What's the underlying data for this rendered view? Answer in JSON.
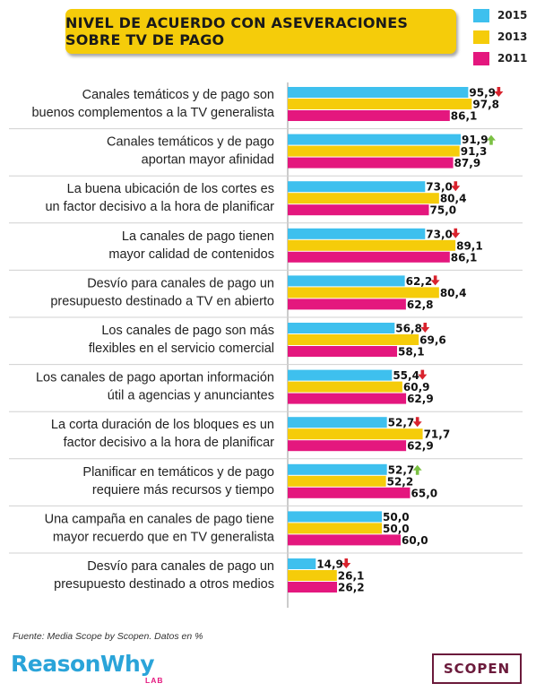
{
  "header": {
    "title": "NIVEL DE ACUERDO CON ASEVERACIONES SOBRE TV DE PAGO"
  },
  "legend": [
    {
      "label": "2015",
      "color": "#3ec0ee"
    },
    {
      "label": "2013",
      "color": "#f5cc0a"
    },
    {
      "label": "2011",
      "color": "#e4177e"
    }
  ],
  "chart_data": {
    "type": "bar",
    "orientation": "horizontal",
    "title": "NIVEL DE ACUERDO CON ASEVERACIONES SOBRE TV DE PAGO",
    "xlim": [
      0,
      100
    ],
    "grid": false,
    "legend_position": "top-right",
    "categories": [
      [
        "Canales temáticos y de pago son",
        "buenos complementos a la TV generalista"
      ],
      [
        "Canales temáticos y de pago",
        "aportan mayor afinidad"
      ],
      [
        "La buena ubicación de los cortes es",
        "un factor decisivo a la hora de planificar"
      ],
      [
        "La canales de pago tienen",
        "mayor calidad de contenidos"
      ],
      [
        "Desvío para canales de pago un",
        "presupuesto destinado a TV en abierto"
      ],
      [
        "Los canales de pago son más",
        "flexibles en el servicio comercial"
      ],
      [
        "Los canales de pago aportan información",
        "útil a agencias y anunciantes"
      ],
      [
        "La corta duración de los bloques es un",
        "factor decisivo a la hora de planificar"
      ],
      [
        "Planificar en temáticos y de pago",
        "requiere más recursos y tiempo"
      ],
      [
        "Una campaña en canales de pago tiene",
        "mayor recuerdo que en TV generalista"
      ],
      [
        "Desvío para canales de pago un",
        "presupuesto destinado a otros medios"
      ]
    ],
    "series": [
      {
        "name": "2015",
        "color": "#3ec0ee",
        "values": [
          95.9,
          91.9,
          73.0,
          73.0,
          62.2,
          56.8,
          55.4,
          52.7,
          52.7,
          50.0,
          14.9
        ],
        "labels": [
          "95,9",
          "91,9",
          "73,0",
          "73,0",
          "62,2",
          "56,8",
          "55,4",
          "52,7",
          "52,7",
          "50,0",
          "14,9"
        ]
      },
      {
        "name": "2013",
        "color": "#f5cc0a",
        "values": [
          97.8,
          91.3,
          80.4,
          89.1,
          80.4,
          69.6,
          60.9,
          71.7,
          52.2,
          50.0,
          26.1
        ],
        "labels": [
          "97,8",
          "91,3",
          "80,4",
          "89,1",
          "80,4",
          "69,6",
          "60,9",
          "71,7",
          "52,2",
          "50,0",
          "26,1"
        ]
      },
      {
        "name": "2011",
        "color": "#e4177e",
        "values": [
          86.1,
          87.9,
          75.0,
          86.1,
          62.8,
          58.1,
          62.9,
          62.9,
          65.0,
          60.0,
          26.2
        ],
        "labels": [
          "86,1",
          "87,9",
          "75,0",
          "86,1",
          "62,8",
          "58,1",
          "62,9",
          "62,9",
          "65,0",
          "60,0",
          "26,2"
        ]
      }
    ],
    "trend_2015": [
      "down",
      "up",
      "down",
      "down",
      "down",
      "down",
      "down",
      "down",
      "up",
      "none",
      "down"
    ],
    "trend_colors": {
      "up": "#7bc043",
      "down": "#d9232e"
    }
  },
  "footer": {
    "source": "Fuente: Media Scope by Scopen. Datos en %",
    "logo_left": "ReasonWhy",
    "logo_left_sub": "LAB",
    "logo_right": "SCOPEN"
  }
}
